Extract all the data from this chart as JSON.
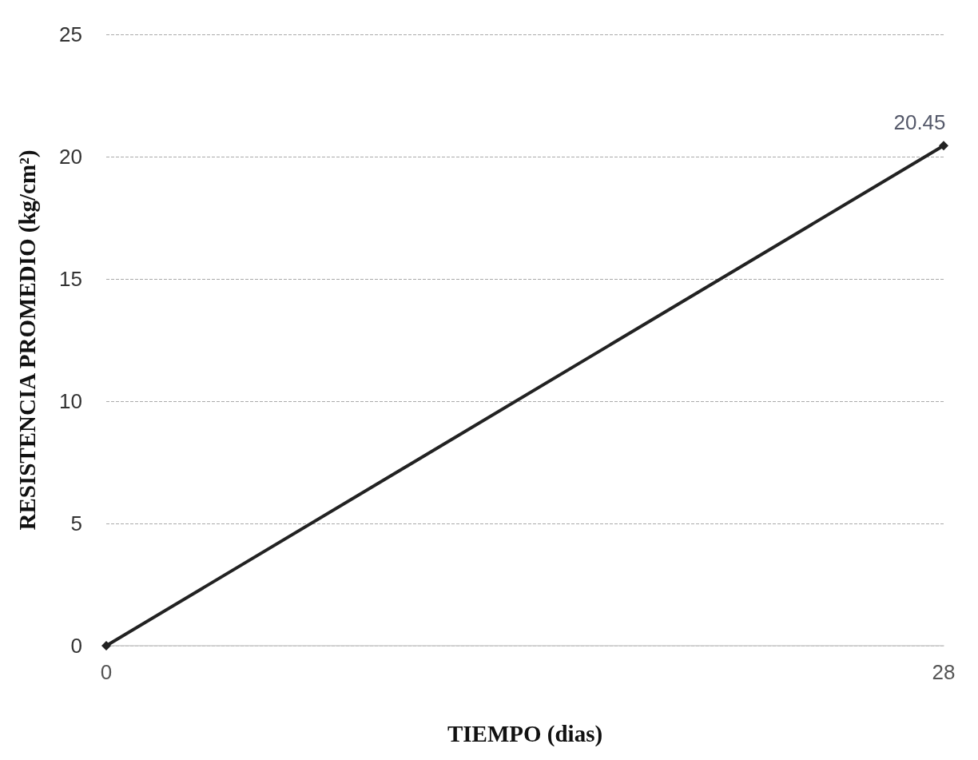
{
  "chart_data": {
    "type": "line",
    "xlabel": "TIEMPO (dias)",
    "ylabel": "RESISTENCIA PROMEDIO (kg/cm²)",
    "x": [
      0,
      28
    ],
    "series": [
      {
        "color": "#222222",
        "values": [
          0,
          20.45
        ],
        "value_labels": [
          null,
          "20.45"
        ]
      }
    ],
    "xlim": [
      0,
      28
    ],
    "xticks": [
      0,
      28
    ],
    "ylim": [
      0,
      25
    ],
    "yticks": [
      0,
      5,
      10,
      15,
      20,
      25
    ],
    "grid": "y",
    "marker": "diamond",
    "line_style": "solid"
  }
}
